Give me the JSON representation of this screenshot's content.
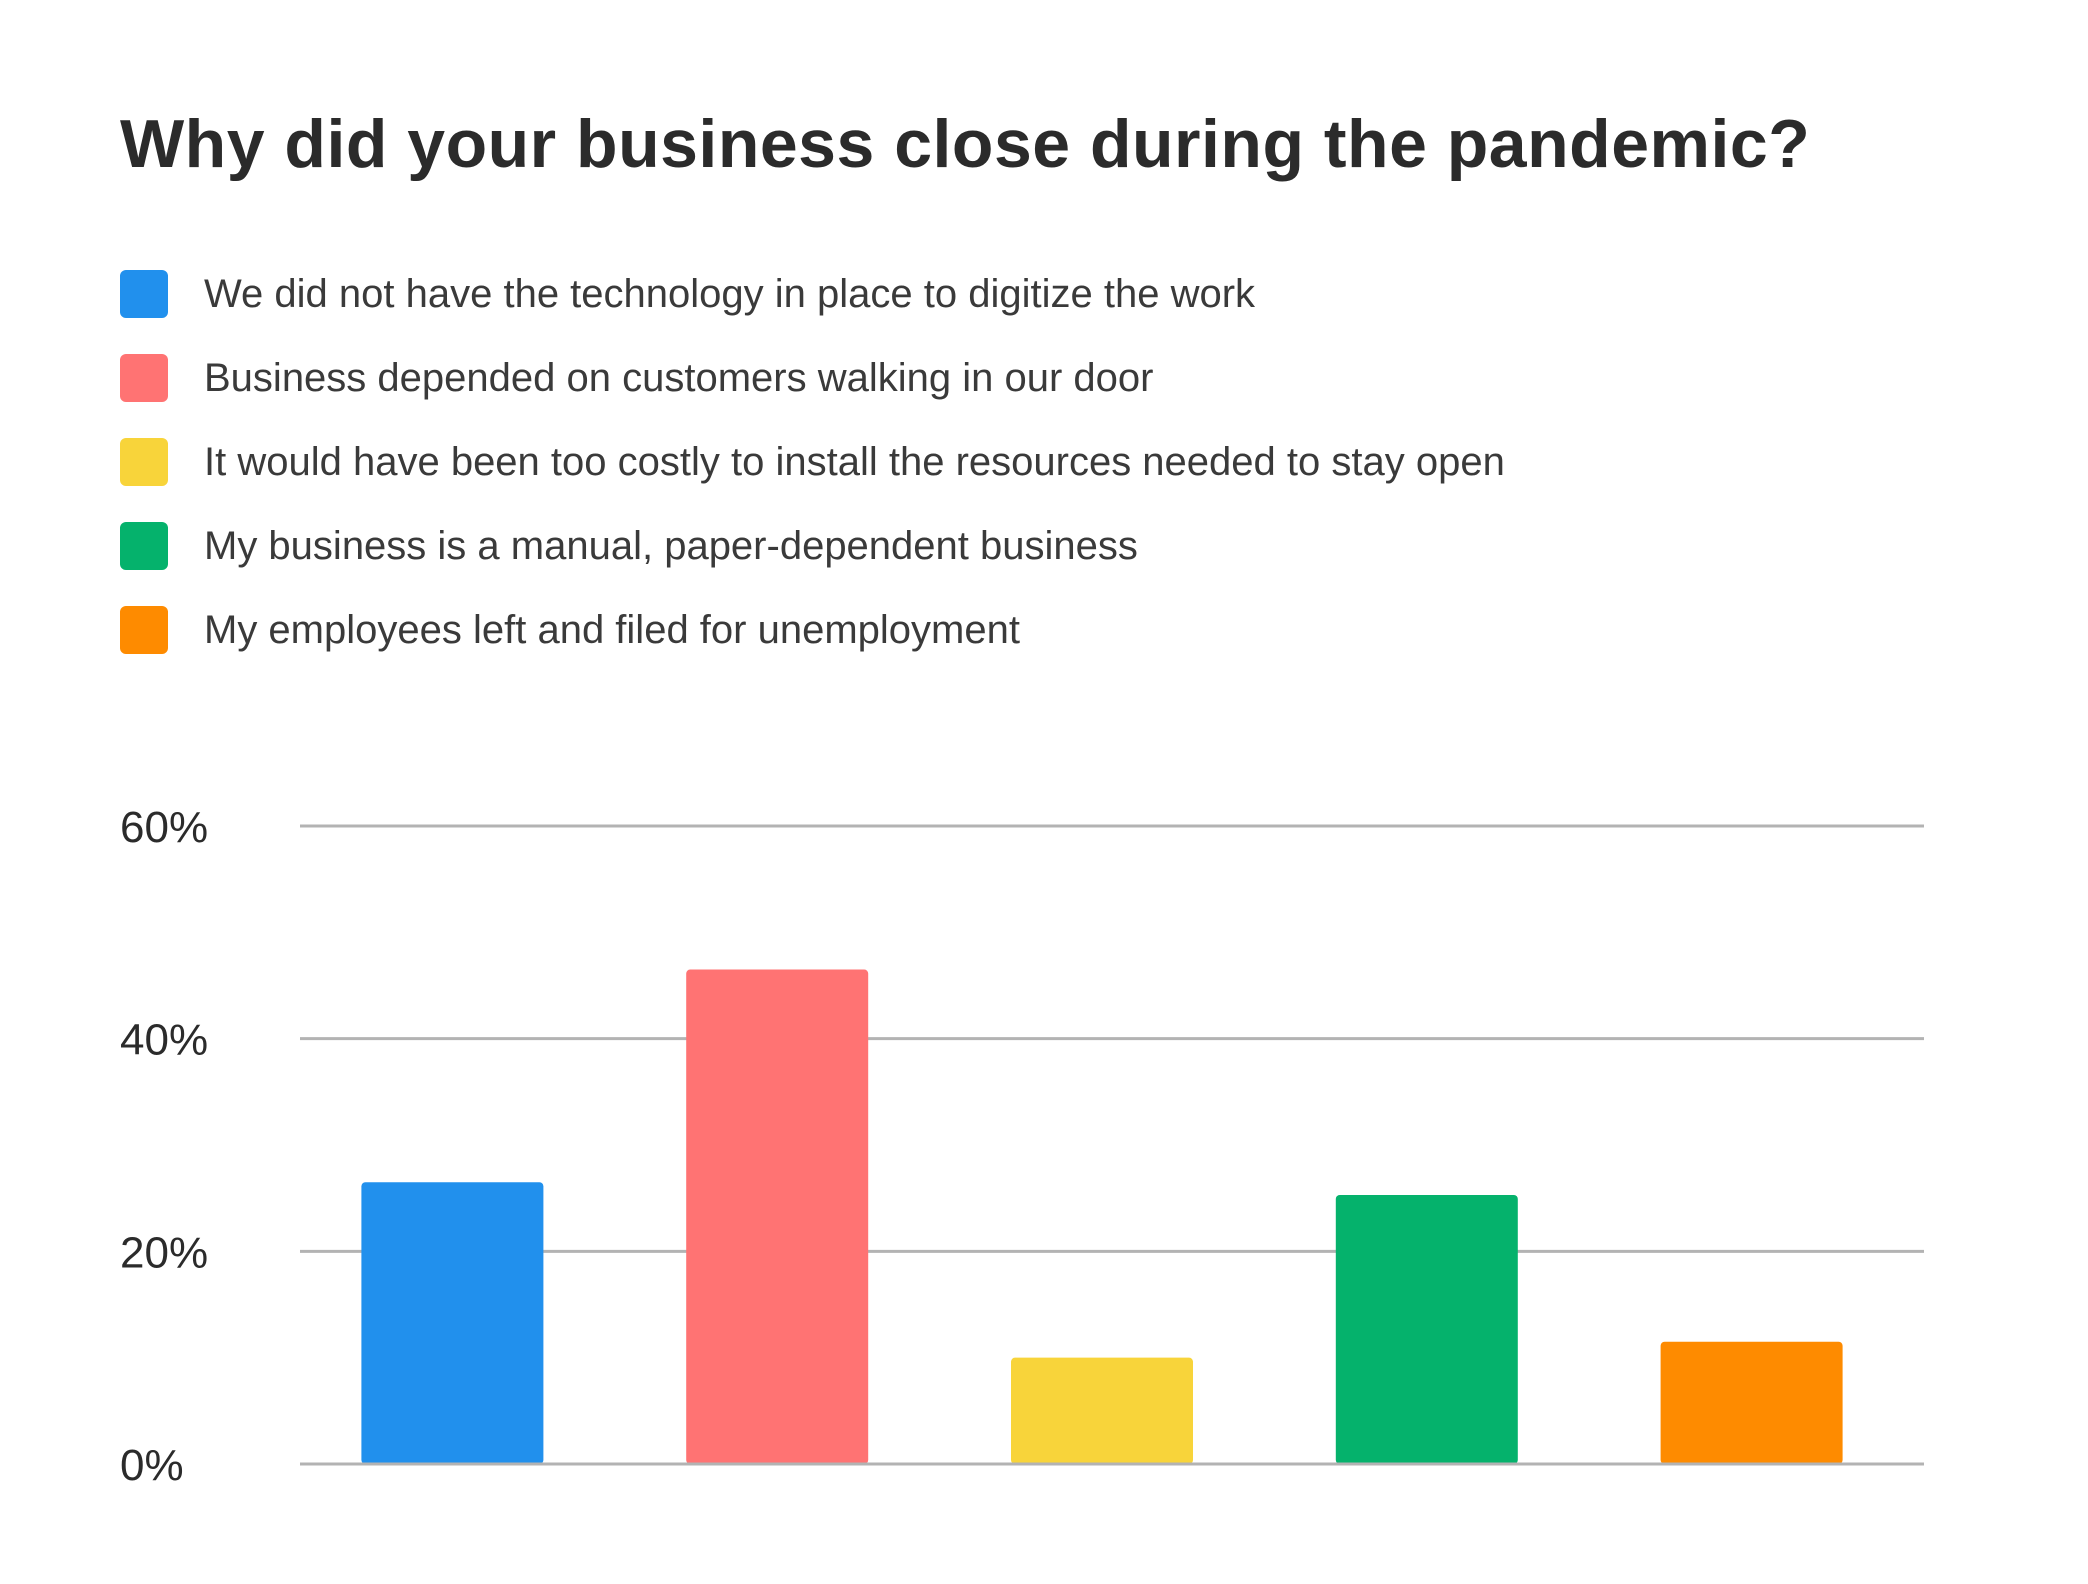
{
  "chart_data": {
    "type": "bar",
    "title": "Why did your business close during the pandemic?",
    "categories": [
      "We did not have the technology in place to digitize the work",
      "Business depended on customers walking in our door",
      "It would have been too costly to install the resources needed to stay open",
      "My business is a manual, paper-dependent business",
      "My employees left and filed for unemployment"
    ],
    "values": [
      26.5,
      46.5,
      10,
      25.3,
      11.5
    ],
    "colors": [
      "#2190ed",
      "#ff7373",
      "#f8d43a",
      "#05b26c",
      "#fe8b00"
    ],
    "ylim": [
      0,
      60
    ],
    "yticks": [
      0,
      20,
      40,
      60
    ],
    "ytick_labels": [
      "0%",
      "20%",
      "40%",
      "60%"
    ],
    "grid": true,
    "legend_position": "top-left",
    "xlabel": "",
    "ylabel": ""
  }
}
